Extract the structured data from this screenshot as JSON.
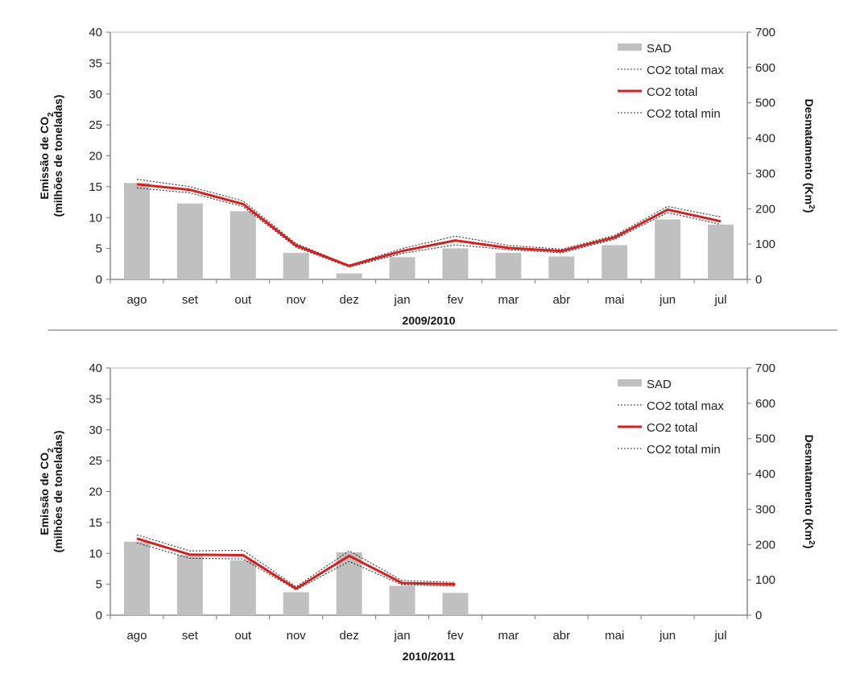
{
  "chart_data": [
    {
      "type": "bar+line",
      "title": "2009/2010",
      "categories": [
        "ago",
        "set",
        "out",
        "nov",
        "dez",
        "jan",
        "fev",
        "mar",
        "abr",
        "mai",
        "jun",
        "jul"
      ],
      "ylabel_left": [
        "Emissão de CO",
        "2",
        "(milhões de toneladas)"
      ],
      "ylabel_right": [
        "Desmatamento (Km",
        "2",
        ")"
      ],
      "ylim_left": [
        0,
        40
      ],
      "yticks_left": [
        "0",
        "5",
        "10",
        "15",
        "20",
        "25",
        "30",
        "35",
        "40"
      ],
      "ylim_right": [
        0,
        700
      ],
      "yticks_right": [
        "0",
        "100",
        "200",
        "300",
        "400",
        "500",
        "600",
        "700"
      ],
      "legend": {
        "position": "top-right",
        "entries": [
          {
            "label": "SAD",
            "kind": "bar"
          },
          {
            "label": "CO2 total max",
            "kind": "dotted"
          },
          {
            "label": "CO2 total",
            "kind": "red"
          },
          {
            "label": "CO2 total min",
            "kind": "dotted"
          }
        ]
      },
      "series": [
        {
          "name": "SAD",
          "axis": "right",
          "values": [
            273,
            215,
            193,
            75,
            17,
            63,
            88,
            75,
            65,
            97,
            170,
            155
          ]
        },
        {
          "name": "CO2 total max",
          "axis": "left",
          "values": [
            16.2,
            15.0,
            12.7,
            5.8,
            2.3,
            5.0,
            7.0,
            5.5,
            4.9,
            7.1,
            11.8,
            10.1
          ]
        },
        {
          "name": "CO2 total",
          "axis": "left",
          "values": [
            15.4,
            14.5,
            12.2,
            5.5,
            2.2,
            4.6,
            6.3,
            5.1,
            4.6,
            6.8,
            11.3,
            9.4
          ]
        },
        {
          "name": "CO2 total min",
          "axis": "left",
          "values": [
            14.8,
            14.0,
            11.8,
            5.2,
            2.0,
            4.2,
            5.6,
            4.8,
            4.3,
            6.5,
            10.8,
            8.9
          ]
        }
      ],
      "colors": {
        "bar": "#c0c0c0",
        "line": "#e01b1b",
        "dotted": "#333333"
      }
    },
    {
      "type": "bar+line",
      "title": "2010/2011",
      "categories": [
        "ago",
        "set",
        "out",
        "nov",
        "dez",
        "jan",
        "fev",
        "mar",
        "abr",
        "mai",
        "jun",
        "jul"
      ],
      "ylabel_left": [
        "Emissão de CO",
        "2",
        "(milhões de toneladas)"
      ],
      "ylabel_right": [
        "Desmatamento (Km",
        "2",
        ")"
      ],
      "ylim_left": [
        0,
        40
      ],
      "yticks_left": [
        "0",
        "5",
        "10",
        "15",
        "20",
        "25",
        "30",
        "35",
        "40"
      ],
      "ylim_right": [
        0,
        700
      ],
      "yticks_right": [
        "0",
        "100",
        "200",
        "300",
        "400",
        "500",
        "600",
        "700"
      ],
      "legend": {
        "position": "top-right",
        "entries": [
          {
            "label": "SAD",
            "kind": "bar"
          },
          {
            "label": "CO2 total max",
            "kind": "dotted"
          },
          {
            "label": "CO2 total",
            "kind": "red"
          },
          {
            "label": "CO2 total min",
            "kind": "dotted"
          }
        ]
      },
      "series": [
        {
          "name": "SAD",
          "axis": "right",
          "values": [
            208,
            170,
            155,
            65,
            178,
            83,
            63,
            null,
            null,
            null,
            null,
            null
          ]
        },
        {
          "name": "CO2 total max",
          "axis": "left",
          "values": [
            13.0,
            10.4,
            10.5,
            4.6,
            10.4,
            5.6,
            5.3,
            null,
            null,
            null,
            null,
            null
          ]
        },
        {
          "name": "CO2 total",
          "axis": "left",
          "values": [
            12.4,
            9.8,
            9.7,
            4.3,
            9.6,
            5.2,
            5.0,
            null,
            null,
            null,
            null,
            null
          ]
        },
        {
          "name": "CO2 total min",
          "axis": "left",
          "values": [
            11.7,
            9.2,
            9.1,
            4.1,
            8.7,
            4.9,
            4.7,
            null,
            null,
            null,
            null,
            null
          ]
        }
      ],
      "colors": {
        "bar": "#c0c0c0",
        "line": "#e01b1b",
        "dotted": "#333333"
      }
    }
  ]
}
